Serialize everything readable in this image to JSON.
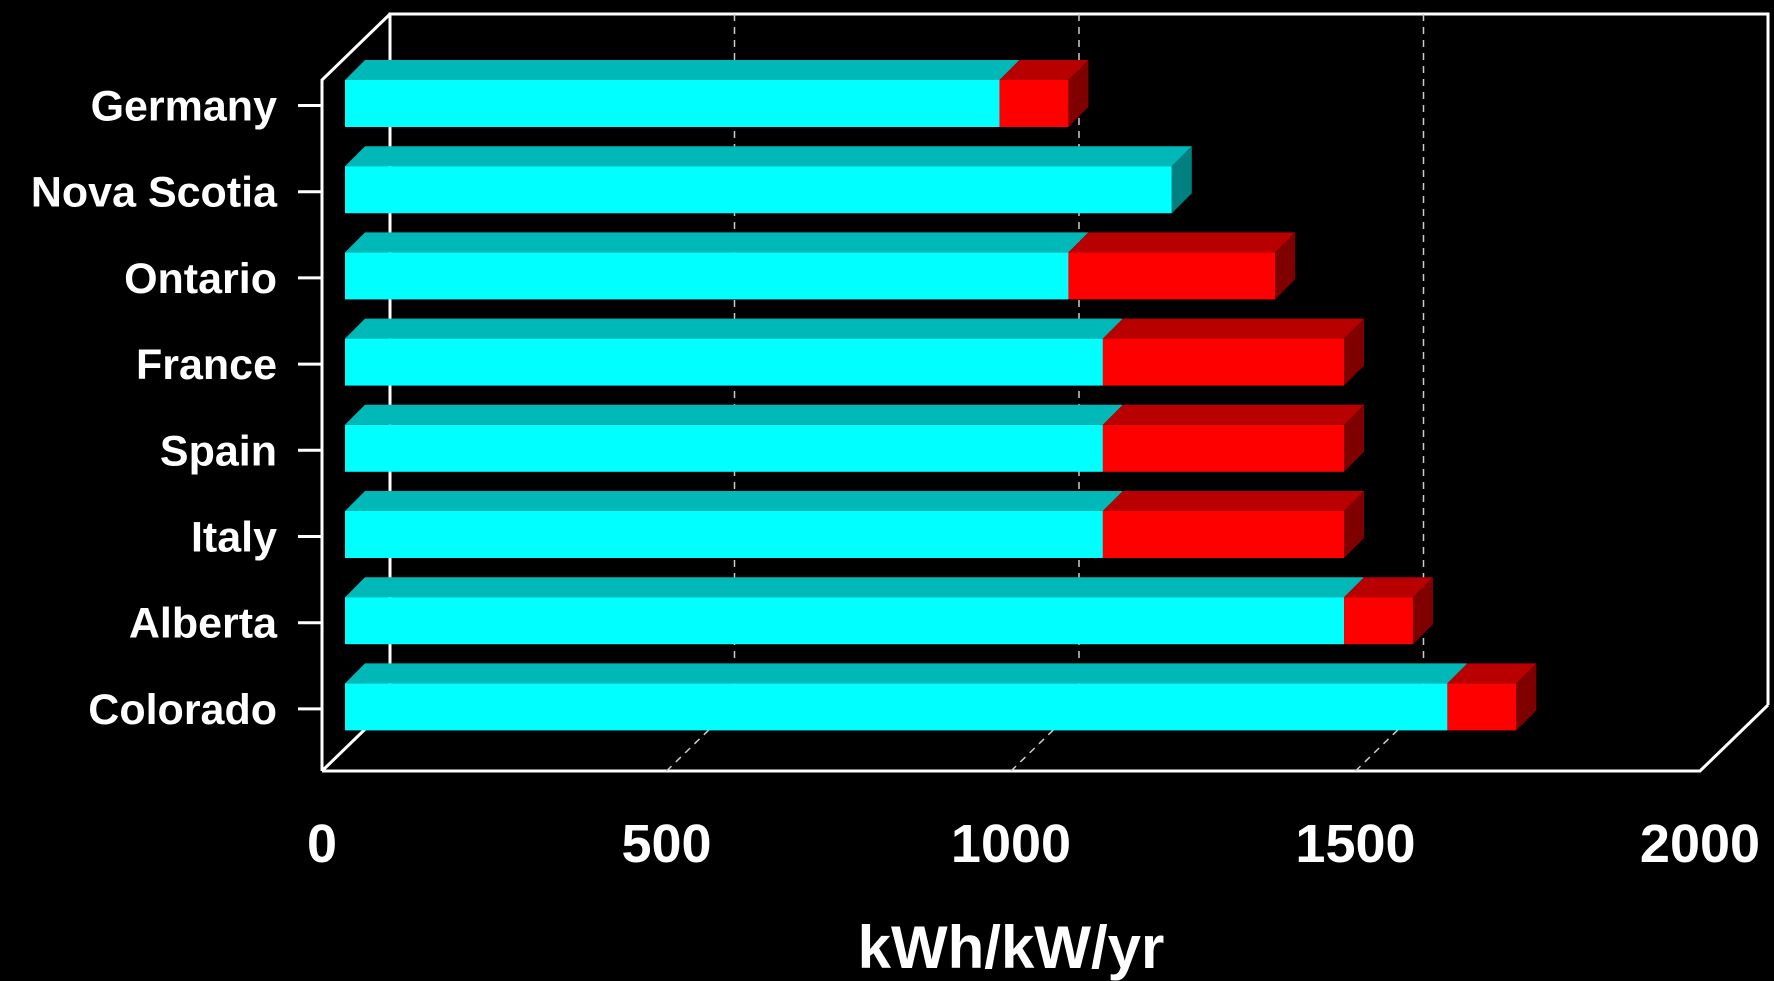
{
  "chart_data": {
    "type": "bar",
    "orientation": "horizontal",
    "stacked": true,
    "three_d": true,
    "categories": [
      "Germany",
      "Nova Scotia",
      "Ontario",
      "France",
      "Spain",
      "Italy",
      "Alberta",
      "Colorado"
    ],
    "series": [
      {
        "values": [
          950,
          1200,
          1050,
          1100,
          1100,
          1100,
          1450,
          1600
        ],
        "color": "#00ffff"
      },
      {
        "values": [
          100,
          0,
          300,
          350,
          350,
          350,
          100,
          100
        ],
        "color": "#ff0000"
      }
    ],
    "xlim": [
      0,
      2000
    ],
    "xticks": [
      "0",
      "500",
      "1000",
      "1500",
      "2000"
    ],
    "xlabel": "kWh/kW/yr",
    "ylabel": "",
    "title": "",
    "grid": "vertical dashed",
    "background": "#000000"
  }
}
